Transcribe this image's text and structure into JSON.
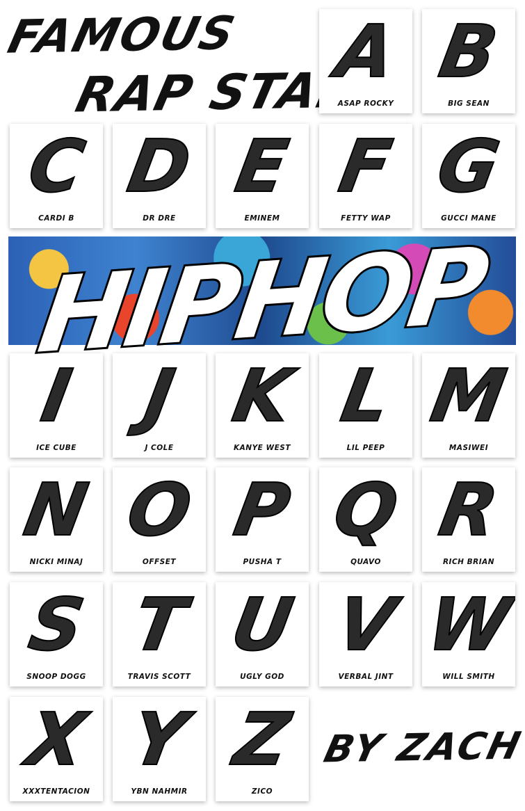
{
  "title_line1": "FAMOUS",
  "title_line2": "RAP STAR",
  "banner_text": "HIPHOP",
  "credit": "BY ZACH",
  "cards": [
    {
      "letter": "A",
      "name": "ASAP ROCKY"
    },
    {
      "letter": "B",
      "name": "BIG SEAN"
    },
    {
      "letter": "C",
      "name": "CARDI B"
    },
    {
      "letter": "D",
      "name": "DR DRE"
    },
    {
      "letter": "E",
      "name": "EMINEM"
    },
    {
      "letter": "F",
      "name": "FETTY WAP"
    },
    {
      "letter": "G",
      "name": "GUCCI MANE"
    },
    {
      "letter": "I",
      "name": "ICE CUBE"
    },
    {
      "letter": "J",
      "name": "J COLE"
    },
    {
      "letter": "K",
      "name": "KANYE WEST"
    },
    {
      "letter": "L",
      "name": "LIL PEEP"
    },
    {
      "letter": "M",
      "name": "MASIWEI"
    },
    {
      "letter": "N",
      "name": "NICKI MINAJ"
    },
    {
      "letter": "O",
      "name": "OFFSET"
    },
    {
      "letter": "P",
      "name": "PUSHA T"
    },
    {
      "letter": "Q",
      "name": "QUAVO"
    },
    {
      "letter": "R",
      "name": "RICH BRIAN"
    },
    {
      "letter": "S",
      "name": "SNOOP DOGG"
    },
    {
      "letter": "T",
      "name": "TRAVIS SCOTT"
    },
    {
      "letter": "U",
      "name": "UGLY GOD"
    },
    {
      "letter": "V",
      "name": "VERBAL JINT"
    },
    {
      "letter": "W",
      "name": "WILL SMITH"
    },
    {
      "letter": "X",
      "name": "XXXTENTACION"
    },
    {
      "letter": "Y",
      "name": "YBN NAHMIR"
    },
    {
      "letter": "Z",
      "name": "ZICO"
    }
  ]
}
